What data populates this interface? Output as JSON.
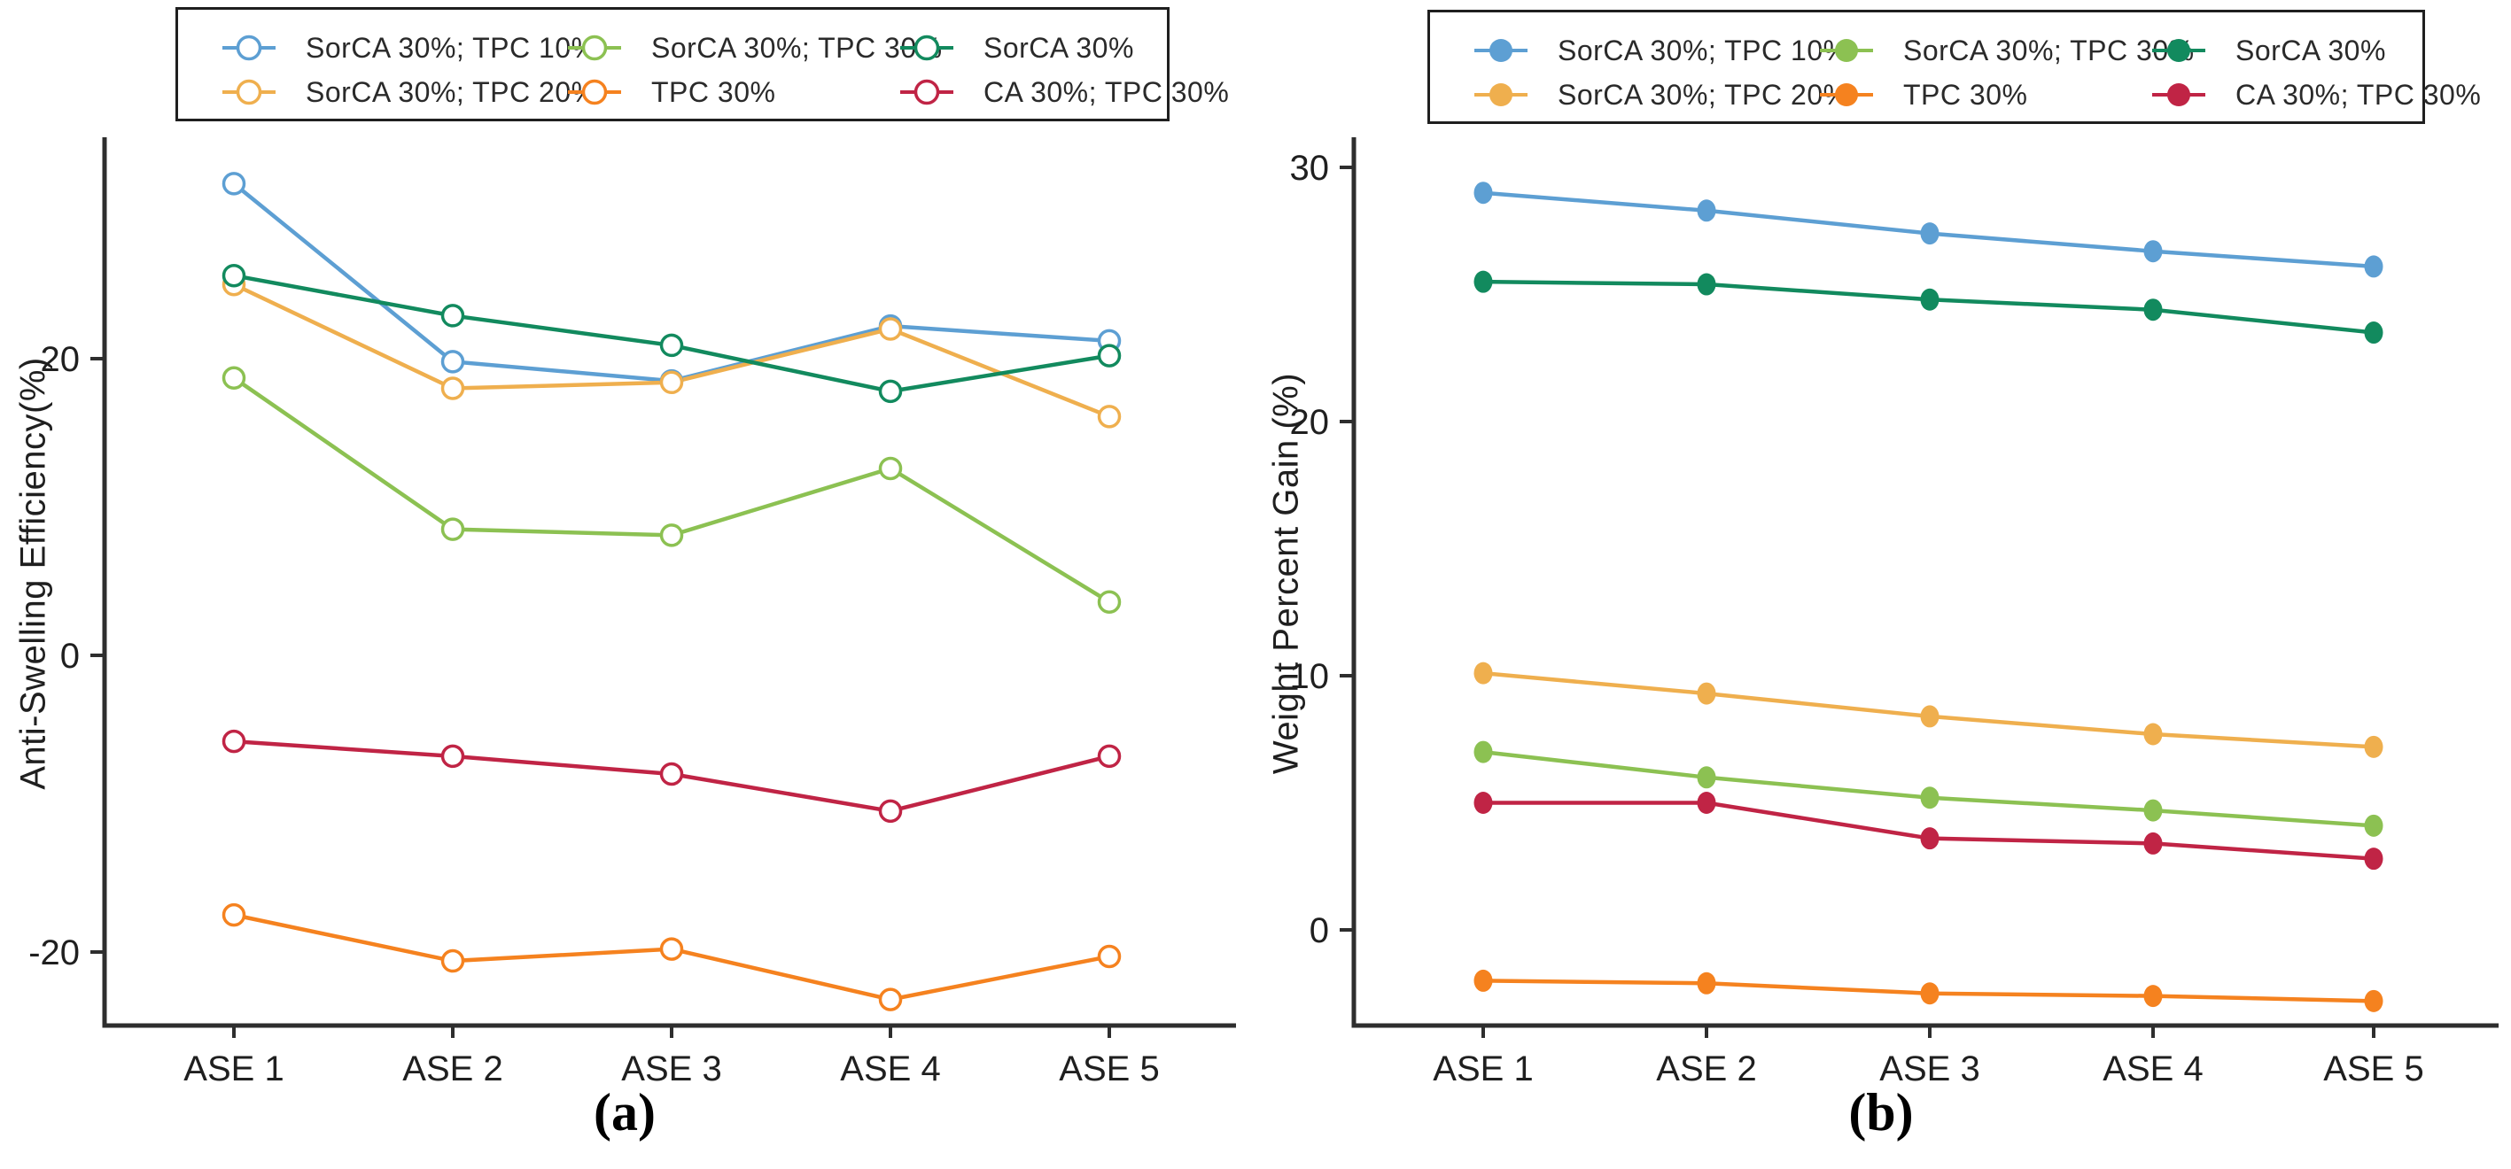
{
  "figure": {
    "caption_a": "(a)",
    "caption_b": "(b)"
  },
  "legend": {
    "items": [
      {
        "label": "SorCA 30%; TPC 10%",
        "color": "#5D9FD3"
      },
      {
        "label": "SorCA 30%; TPC 30%",
        "color": "#8CC152"
      },
      {
        "label": "SorCA 30%",
        "color": "#128A5E"
      },
      {
        "label": "SorCA 30%; TPC 20%",
        "color": "#EFAF4E"
      },
      {
        "label": "TPC 30%",
        "color": "#F5821F"
      },
      {
        "label": "CA 30%; TPC 30%",
        "color": "#C02445"
      }
    ]
  },
  "chart_data": [
    {
      "id": "a",
      "type": "line",
      "title": "",
      "xlabel": "",
      "ylabel": "Anti-Swelling Efficiency(%)",
      "categories": [
        "ASE 1",
        "ASE 2",
        "ASE 3",
        "ASE 4",
        "ASE 5"
      ],
      "yticks": [
        20,
        0,
        -20
      ],
      "ylim": [
        -25,
        35
      ],
      "grid": false,
      "legend_position": "top",
      "marker_style": "open-circle",
      "series": [
        {
          "name": "SorCA 30%; TPC 10%",
          "color": "#5D9FD3",
          "values": [
            31.8,
            19.8,
            18.5,
            22.2,
            21.2
          ]
        },
        {
          "name": "SorCA 30%; TPC 20%",
          "color": "#EFAF4E",
          "values": [
            25.0,
            18.0,
            18.4,
            22.0,
            16.1
          ]
        },
        {
          "name": "SorCA 30%; TPC 30%",
          "color": "#8CC152",
          "values": [
            18.7,
            8.5,
            8.1,
            12.6,
            3.6
          ]
        },
        {
          "name": "TPC 30%",
          "color": "#F5821F",
          "values": [
            -17.5,
            -20.6,
            -19.8,
            -23.2,
            -20.3
          ]
        },
        {
          "name": "SorCA 30%",
          "color": "#128A5E",
          "values": [
            25.6,
            22.9,
            20.9,
            17.8,
            20.2
          ]
        },
        {
          "name": "CA 30%; TPC 30%",
          "color": "#C02445",
          "values": [
            -5.8,
            -6.8,
            -8.0,
            -10.5,
            -6.8
          ]
        }
      ]
    },
    {
      "id": "b",
      "type": "line",
      "title": "",
      "xlabel": "",
      "ylabel": "Weight Percent Gain (%)",
      "categories": [
        "ASE 1",
        "ASE 2",
        "ASE 3",
        "ASE 4",
        "ASE 5"
      ],
      "yticks": [
        30,
        20,
        10,
        0
      ],
      "ylim": [
        -3.8,
        31.2
      ],
      "grid": false,
      "legend_position": "top",
      "marker_style": "filled-circle",
      "series": [
        {
          "name": "SorCA 30%; TPC 10%",
          "color": "#5D9FD3",
          "values": [
            29.0,
            28.3,
            27.4,
            26.7,
            26.1
          ]
        },
        {
          "name": "SorCA 30%; TPC 20%",
          "color": "#EFAF4E",
          "values": [
            10.1,
            9.3,
            8.4,
            7.7,
            7.2
          ]
        },
        {
          "name": "SorCA 30%; TPC 30%",
          "color": "#8CC152",
          "values": [
            7.0,
            6.0,
            5.2,
            4.7,
            4.1
          ]
        },
        {
          "name": "TPC 30%",
          "color": "#F5821F",
          "values": [
            -2.0,
            -2.1,
            -2.5,
            -2.6,
            -2.8
          ]
        },
        {
          "name": "SorCA 30%",
          "color": "#128A5E",
          "values": [
            25.5,
            25.4,
            24.8,
            24.4,
            23.5
          ]
        },
        {
          "name": "CA 30%; TPC 30%",
          "color": "#C02445",
          "values": [
            5.0,
            5.0,
            3.6,
            3.4,
            2.8
          ]
        }
      ]
    }
  ]
}
